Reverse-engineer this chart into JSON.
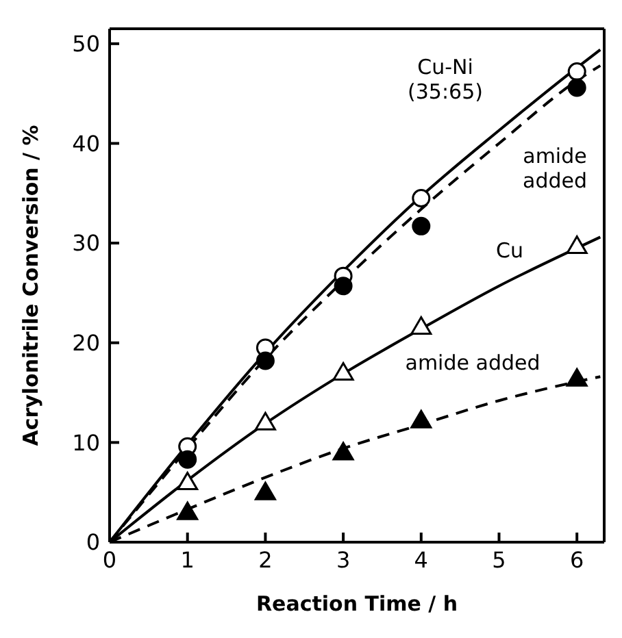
{
  "chart_data": {
    "type": "scatter",
    "xlabel": "Reaction Time  /  h",
    "ylabel": "Acrylonitrile Conversion  /  %",
    "xlim": [
      0,
      6.35
    ],
    "ylim": [
      0,
      51.5
    ],
    "xticks": [
      0,
      1,
      2,
      3,
      4,
      5,
      6
    ],
    "yticks": [
      0,
      10,
      20,
      30,
      40,
      50
    ],
    "grid": false,
    "legend": false,
    "series": [
      {
        "marker": "circle",
        "color": "#ffffff",
        "x": [
          1,
          2,
          3,
          4,
          6
        ],
        "values": [
          9.6,
          19.5,
          26.7,
          34.5,
          47.2
        ]
      },
      {
        "marker": "circle",
        "color": "#000000",
        "x": [
          1,
          2,
          3,
          4,
          6
        ],
        "values": [
          8.3,
          18.2,
          25.7,
          31.7,
          45.6
        ]
      },
      {
        "marker": "triangle",
        "color": "#ffffff",
        "x": [
          1,
          2,
          3,
          4,
          6
        ],
        "values": [
          6,
          12,
          17,
          21.6,
          29.7
        ]
      },
      {
        "marker": "triangle",
        "color": "#000000",
        "x": [
          1,
          2,
          3,
          4,
          6
        ],
        "values": [
          3,
          5,
          9,
          12.2,
          16.4
        ]
      },
      {
        "type": "line",
        "line_style": "solid",
        "color": "#000000",
        "x": [
          0,
          1,
          2,
          3,
          4,
          5,
          6,
          6.3
        ],
        "values": [
          0,
          9.8,
          19,
          27.2,
          34.7,
          41.3,
          47.6,
          49.4
        ]
      },
      {
        "type": "line",
        "line_style": "dashed",
        "color": "#000000",
        "x": [
          0,
          1,
          2,
          3,
          4,
          5,
          6,
          6.3
        ],
        "values": [
          0,
          9.4,
          18.4,
          26.2,
          33.4,
          40,
          46.3,
          47.8
        ]
      },
      {
        "type": "line",
        "line_style": "solid",
        "color": "#000000",
        "x": [
          0,
          1,
          2,
          3,
          4,
          5,
          6,
          6.3
        ],
        "values": [
          0,
          6.2,
          11.9,
          16.9,
          21.4,
          25.7,
          29.5,
          30.6
        ]
      },
      {
        "type": "line",
        "line_style": "dashed",
        "color": "#000000",
        "x": [
          0,
          1,
          2,
          3,
          4,
          5,
          6,
          6.3
        ],
        "values": [
          0,
          3.3,
          6.5,
          9.4,
          11.8,
          14.2,
          16.1,
          16.6
        ]
      }
    ],
    "annotations": [
      "Cu-Ni\n(35:65)",
      "amide\nadded",
      "Cu",
      "amide added"
    ]
  }
}
